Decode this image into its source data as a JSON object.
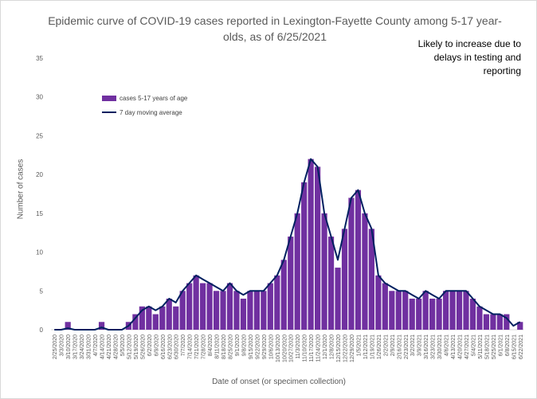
{
  "chart_data": {
    "type": "bar",
    "title": "Epidemic curve of COVID-19 cases reported in Lexington-Fayette County among 5-17 year-olds, as of 6/25/2021",
    "xlabel": "Date of onset (or specimen collection)",
    "ylabel": "Number of cases",
    "ylim": [
      0,
      35
    ],
    "yticks": [
      0,
      5,
      10,
      15,
      20,
      25,
      30,
      35
    ],
    "grid": false,
    "legend_position": "upper-left",
    "annotation": "Likely to increase due to delays in testing and reporting",
    "shaded_region": [
      "6/18/2021",
      "6/25/2021"
    ],
    "x_tick_labels": [
      "2/25/2020",
      "3/3/2020",
      "3/10/2020",
      "3/17/2020",
      "3/24/2020",
      "3/31/2020",
      "4/7/2020",
      "4/14/2020",
      "4/21/2020",
      "4/28/2020",
      "5/5/2020",
      "5/12/2020",
      "5/19/2020",
      "5/26/2020",
      "6/2/2020",
      "6/9/2020",
      "6/16/2020",
      "6/23/2020",
      "6/30/2020",
      "7/7/2020",
      "7/14/2020",
      "7/21/2020",
      "7/28/2020",
      "8/4/2020",
      "8/11/2020",
      "8/18/2020",
      "8/25/2020",
      "9/1/2020",
      "9/8/2020",
      "9/15/2020",
      "9/22/2020",
      "9/29/2020",
      "10/6/2020",
      "10/13/2020",
      "10/20/2020",
      "10/27/2020",
      "11/3/2020",
      "11/10/2020",
      "11/17/2020",
      "11/24/2020",
      "12/1/2020",
      "12/8/2020",
      "12/15/2020",
      "12/22/2020",
      "12/29/2020",
      "1/5/2021",
      "1/12/2021",
      "1/19/2021",
      "1/26/2021",
      "2/2/2021",
      "2/9/2021",
      "2/16/2021",
      "2/23/2021",
      "3/2/2021",
      "3/9/2021",
      "3/16/2021",
      "3/23/2021",
      "3/30/2021",
      "4/6/2021",
      "4/13/2021",
      "4/20/2021",
      "4/27/2021",
      "5/4/2021",
      "5/11/2021",
      "5/18/2021",
      "5/25/2021",
      "6/1/2021",
      "6/8/2021",
      "6/15/2021",
      "6/22/2021"
    ],
    "series": [
      {
        "name": "cases 5-17 years of age",
        "color": "#7030a0",
        "weekly_values": [
          0,
          0,
          1,
          0,
          0,
          0,
          0,
          1,
          0,
          0,
          0,
          1,
          2,
          3,
          3,
          2,
          3,
          4,
          3,
          5,
          6,
          7,
          6,
          6,
          5,
          5,
          6,
          5,
          4,
          5,
          5,
          5,
          6,
          7,
          9,
          12,
          15,
          19,
          22,
          21,
          15,
          12,
          8,
          13,
          17,
          18,
          15,
          13,
          7,
          6,
          5,
          5,
          5,
          4,
          4,
          5,
          4,
          4,
          5,
          5,
          5,
          5,
          4,
          3,
          2,
          2,
          2,
          2,
          0,
          1
        ]
      },
      {
        "name": "7 day moving average",
        "color": "#002060",
        "weekly_values": [
          0,
          0,
          0.2,
          0,
          0,
          0,
          0,
          0.3,
          0,
          0,
          0,
          0.5,
          1.5,
          2.5,
          3,
          2.5,
          3,
          4,
          3.5,
          5,
          6,
          7,
          6.5,
          6,
          5.5,
          5,
          6,
          5,
          4.5,
          5,
          5,
          5,
          6,
          7,
          9,
          12,
          15,
          19,
          22,
          21,
          15,
          12,
          9,
          13,
          17,
          18,
          15,
          13,
          7,
          6,
          5.5,
          5,
          5,
          4.5,
          4,
          5,
          4.5,
          4,
          5,
          5,
          5,
          5,
          4,
          3,
          2.5,
          2,
          2,
          1.5,
          0.5,
          1
        ]
      }
    ]
  },
  "legend": {
    "bar_label": "cases 5-17 years of age",
    "line_label": "7 day moving average"
  }
}
